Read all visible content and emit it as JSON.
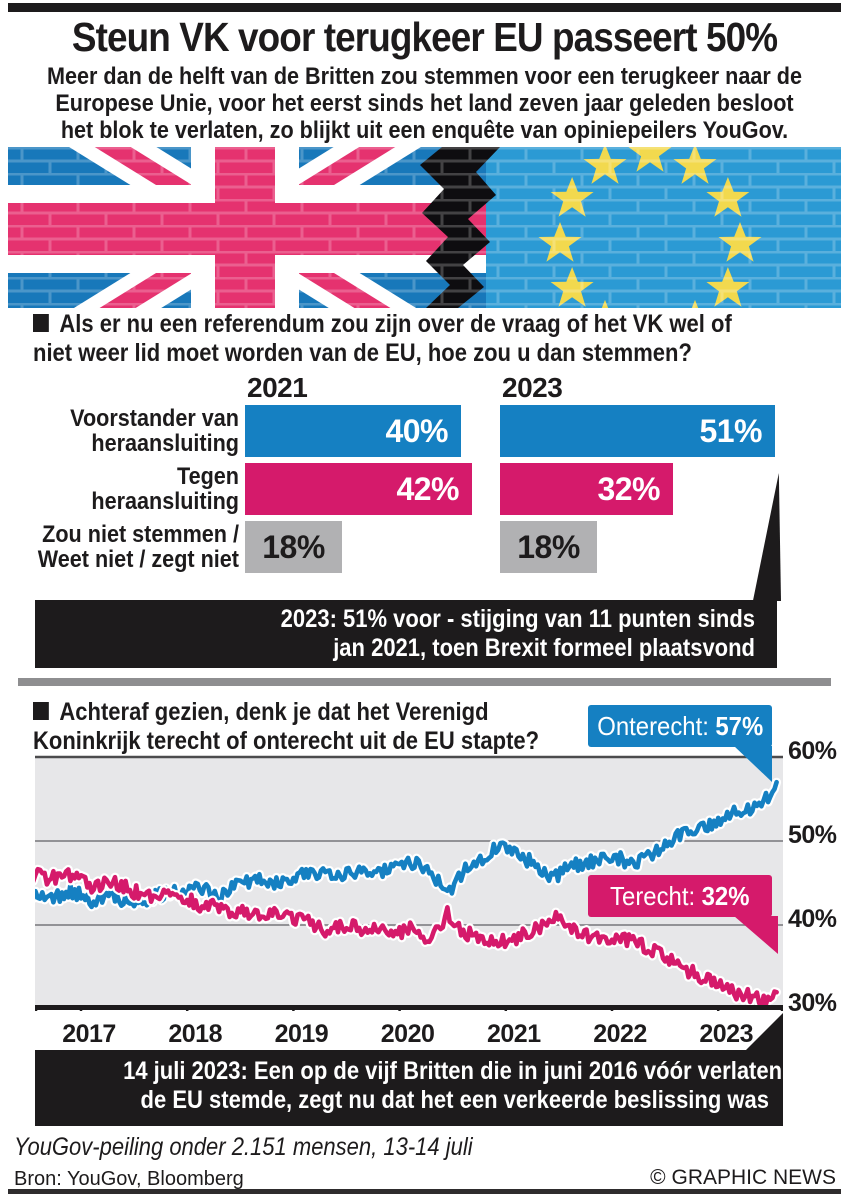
{
  "header": {
    "title": "Steun VK voor terugkeer EU passeert 50%",
    "subtitle_lines": [
      "Meer dan de helft van de Britten zou stemmen voor een terugkeer naar de",
      "Europese Unie, voor het eerst sinds het land zeven jaar geleden besloot",
      "het blok te verlaten, zo blijkt uit een enquête van opiniepeilers YouGov."
    ]
  },
  "question1": {
    "lines": [
      "Als er nu een referendum zou zijn over de vraag of het VK wel of",
      "niet weer lid moet worden van de EU, hoe zou u dan stemmen?"
    ]
  },
  "survey_chart": {
    "type": "bar",
    "unit": "%",
    "col_headers": [
      "2021",
      "2023"
    ],
    "rows": [
      {
        "label_lines": [
          "Voorstander van",
          "heraansluiting"
        ],
        "color_key": "blue",
        "values": {
          "2021": 40,
          "2023": 51
        }
      },
      {
        "label_lines": [
          "Tegen",
          "heraansluiting"
        ],
        "color_key": "pink",
        "values": {
          "2021": 42,
          "2023": 32
        }
      },
      {
        "label_lines": [
          "Zou niet stemmen /",
          "Weet niet / zegt niet"
        ],
        "color_key": "gray",
        "values": {
          "2021": 18,
          "2023": 18
        }
      }
    ]
  },
  "callout1": {
    "lines": [
      "2023: 51% voor - stijging van 11 punten sinds",
      "jan 2021, toen Brexit formeel plaatsvond"
    ]
  },
  "question2": {
    "lines": [
      "Achteraf gezien, denk je dat het Verenigd",
      "Koninkrijk terecht of onterecht uit de EU stapte?"
    ]
  },
  "chart_data": {
    "type": "line",
    "title": "Achteraf gezien, denk je dat het Verenigd Koninkrijk terecht of onterecht uit de EU stapte?",
    "x_axis": {
      "range": [
        2016.55,
        2023.6
      ],
      "ticks": [
        2017,
        2018,
        2019,
        2020,
        2021,
        2022,
        2023
      ]
    },
    "y_axis": {
      "range": [
        30,
        60
      ],
      "tick_values": [
        60,
        50,
        40,
        30
      ],
      "tick_labels": [
        "60%",
        "50%",
        "40%",
        "30%"
      ]
    },
    "grid": true,
    "legend_position": "badges-on-chart",
    "series": [
      {
        "name": "Onterecht",
        "color": "#1580c2",
        "badge": {
          "prefix": "Onterecht:",
          "value": "57%"
        },
        "points": [
          [
            2016.55,
            44
          ],
          [
            2016.7,
            43
          ],
          [
            2016.9,
            44
          ],
          [
            2017.1,
            43
          ],
          [
            2017.3,
            43.5
          ],
          [
            2017.5,
            42.5
          ],
          [
            2017.7,
            43.5
          ],
          [
            2017.9,
            44
          ],
          [
            2018.1,
            44.5
          ],
          [
            2018.3,
            43.5
          ],
          [
            2018.5,
            45
          ],
          [
            2018.7,
            45.5
          ],
          [
            2018.9,
            45
          ],
          [
            2019.1,
            46
          ],
          [
            2019.3,
            46.5
          ],
          [
            2019.5,
            46
          ],
          [
            2019.7,
            46.5
          ],
          [
            2019.9,
            46.5
          ],
          [
            2020.1,
            47.5
          ],
          [
            2020.3,
            46.5
          ],
          [
            2020.45,
            43.5
          ],
          [
            2020.6,
            46.5
          ],
          [
            2020.8,
            48
          ],
          [
            2020.95,
            49.5
          ],
          [
            2021.1,
            48.5
          ],
          [
            2021.3,
            47
          ],
          [
            2021.45,
            45.5
          ],
          [
            2021.6,
            47
          ],
          [
            2021.8,
            47.5
          ],
          [
            2022.0,
            48
          ],
          [
            2022.2,
            47.5
          ],
          [
            2022.4,
            48.5
          ],
          [
            2022.6,
            50.5
          ],
          [
            2022.8,
            51.5
          ],
          [
            2023.0,
            52.5
          ],
          [
            2023.15,
            53.5
          ],
          [
            2023.3,
            54
          ],
          [
            2023.45,
            55
          ],
          [
            2023.55,
            57
          ]
        ]
      },
      {
        "name": "Terecht",
        "color": "#d51a6b",
        "badge": {
          "prefix": "Terecht:",
          "value": "32%"
        },
        "points": [
          [
            2016.55,
            46
          ],
          [
            2016.7,
            45.5
          ],
          [
            2016.9,
            46
          ],
          [
            2017.1,
            44.5
          ],
          [
            2017.3,
            45
          ],
          [
            2017.5,
            44
          ],
          [
            2017.7,
            43.5
          ],
          [
            2017.9,
            43.5
          ],
          [
            2018.1,
            42.5
          ],
          [
            2018.3,
            42
          ],
          [
            2018.5,
            41.5
          ],
          [
            2018.7,
            41
          ],
          [
            2018.9,
            41.5
          ],
          [
            2019.1,
            40.5
          ],
          [
            2019.3,
            39.5
          ],
          [
            2019.5,
            40
          ],
          [
            2019.7,
            39.5
          ],
          [
            2019.9,
            39
          ],
          [
            2020.1,
            39.5
          ],
          [
            2020.3,
            38
          ],
          [
            2020.45,
            41.5
          ],
          [
            2020.6,
            39
          ],
          [
            2020.8,
            38.5
          ],
          [
            2020.95,
            38
          ],
          [
            2021.1,
            38.5
          ],
          [
            2021.3,
            39.5
          ],
          [
            2021.45,
            41
          ],
          [
            2021.6,
            39.5
          ],
          [
            2021.8,
            38.5
          ],
          [
            2022.0,
            38.5
          ],
          [
            2022.2,
            38
          ],
          [
            2022.4,
            37
          ],
          [
            2022.6,
            35.5
          ],
          [
            2022.8,
            34
          ],
          [
            2023.0,
            33
          ],
          [
            2023.15,
            32
          ],
          [
            2023.3,
            31.5
          ],
          [
            2023.45,
            31
          ],
          [
            2023.55,
            32
          ]
        ]
      }
    ]
  },
  "callout2": {
    "lines": [
      "14 juli 2023: Een op de vijf Britten die in juni 2016 vóór verlaten van",
      "de EU stemde, zegt nu dat het een verkeerde beslissing was"
    ]
  },
  "footer": {
    "note": "YouGov-peiling onder 2.151 mensen, 13-14 juli",
    "source": "Bron: YouGov, Bloomberg",
    "credit": "© GRAPHIC NEWS"
  },
  "colors": {
    "blue": "#1580c2",
    "pink": "#d51a6b",
    "gray": "#b1b1b3",
    "ink": "#1d1b1c",
    "chart_bg": "#e7e7e9",
    "divider": "#8e8e90",
    "eu_blue": "#2b9ad4",
    "uk_blue": "#1878ba",
    "uk_pink": "#e5326f",
    "star_yellow": "#f2d94e"
  }
}
